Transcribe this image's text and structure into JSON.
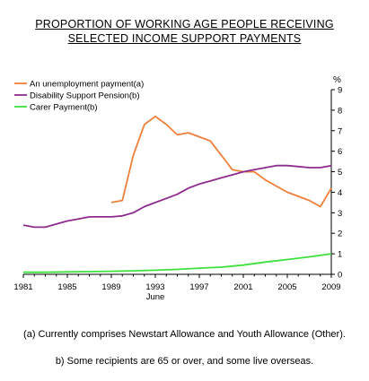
{
  "title_line1": "PROPORTION OF WORKING AGE PEOPLE RECEIVING",
  "title_line2": "SELECTED INCOME SUPPORT PAYMENTS",
  "footnotes": [
    "(a) Currently comprises Newstart Allowance and Youth Allowance (Other).",
    "b) Some recipients are 65 or over, and some live overseas."
  ],
  "chart_data": {
    "type": "line",
    "ylabel": "%",
    "xlabel_note": "June",
    "ylim": [
      0,
      9
    ],
    "xlim": [
      1981,
      2009
    ],
    "yticks": [
      0,
      1,
      2,
      3,
      4,
      5,
      6,
      7,
      8,
      9
    ],
    "xticks": [
      1981,
      1985,
      1989,
      1993,
      1997,
      2001,
      2005,
      2009
    ],
    "grid": false,
    "legend_position": "top-left",
    "series": [
      {
        "name": "An unemployment payment(a)",
        "color": "#ef7f3a",
        "x": [
          1989,
          1990,
          1991,
          1992,
          1993,
          1994,
          1995,
          1996,
          1997,
          1998,
          1999,
          2000,
          2001,
          2002,
          2003,
          2004,
          2005,
          2006,
          2007,
          2008,
          2009
        ],
        "y": [
          3.5,
          3.6,
          5.8,
          7.3,
          7.7,
          7.3,
          6.8,
          6.9,
          6.7,
          6.5,
          5.8,
          5.1,
          5.0,
          5.0,
          4.6,
          4.3,
          4.0,
          3.8,
          3.6,
          3.3,
          4.2
        ]
      },
      {
        "name": "Disability Support Pension(b)",
        "color": "#8e2c8e",
        "x": [
          1981,
          1982,
          1983,
          1984,
          1985,
          1986,
          1987,
          1988,
          1989,
          1990,
          1991,
          1992,
          1993,
          1994,
          1995,
          1996,
          1997,
          1998,
          1999,
          2000,
          2001,
          2002,
          2003,
          2004,
          2005,
          2006,
          2007,
          2008,
          2009
        ],
        "y": [
          2.4,
          2.3,
          2.3,
          2.45,
          2.6,
          2.7,
          2.8,
          2.8,
          2.8,
          2.85,
          3.0,
          3.3,
          3.5,
          3.7,
          3.9,
          4.2,
          4.4,
          4.55,
          4.7,
          4.85,
          5.0,
          5.1,
          5.2,
          5.3,
          5.3,
          5.25,
          5.2,
          5.2,
          5.3
        ]
      },
      {
        "name": "Carer Payment(b)",
        "color": "#3ee03e",
        "x": [
          1981,
          1983,
          1985,
          1987,
          1989,
          1991,
          1993,
          1995,
          1997,
          1999,
          2001,
          2003,
          2005,
          2007,
          2009
        ],
        "y": [
          0.1,
          0.1,
          0.12,
          0.13,
          0.15,
          0.17,
          0.2,
          0.24,
          0.3,
          0.35,
          0.45,
          0.6,
          0.72,
          0.85,
          1.0
        ]
      }
    ]
  }
}
